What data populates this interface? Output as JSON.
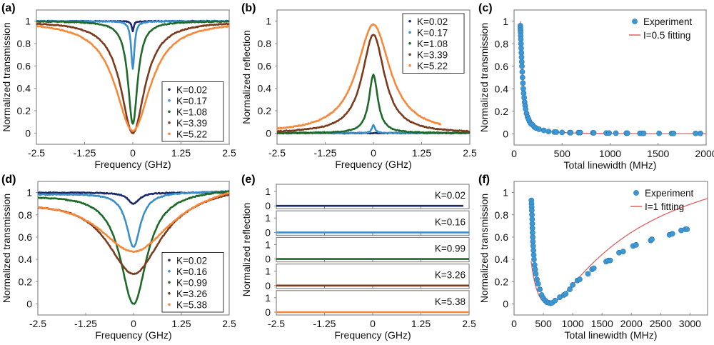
{
  "colors": {
    "navy": "#1b2a6b",
    "blue": "#3a8fc8",
    "green": "#1f6a2a",
    "brown": "#7b3b1c",
    "orange": "#f7883a",
    "fit": "#e06060",
    "exp": "#3d97d3",
    "frame": "#888888"
  },
  "chart_data": [
    {
      "id": "a",
      "panel_label": "(a)",
      "type": "line",
      "xlabel": "Frequency (GHz)",
      "ylabel": "Normalized transmission",
      "xlim": [
        -2.5,
        2.5
      ],
      "ylim": [
        -0.1,
        1.1
      ],
      "xticks": [
        "-2.5",
        "-1.25",
        "0",
        "1.25",
        "2.5"
      ],
      "xtick_values": [
        -2.5,
        -1.25,
        0,
        1.25,
        2.5
      ],
      "yticks": [
        "0",
        "0.2",
        "0.4",
        "0.6",
        "0.8",
        "1"
      ],
      "ytick_values": [
        0,
        0.2,
        0.4,
        0.6,
        0.8,
        1
      ],
      "legend": "bottom-right",
      "curve": "dip",
      "series": [
        {
          "name": "K=0.02",
          "color": "navy",
          "min": 0.91,
          "hwhm": 0.03,
          "baseline": 1.0
        },
        {
          "name": "K=0.17",
          "color": "blue",
          "min": 0.57,
          "hwhm": 0.05,
          "baseline": 1.0
        },
        {
          "name": "K=1.08",
          "color": "green",
          "min": 0.08,
          "hwhm": 0.15,
          "baseline": 1.0
        },
        {
          "name": "K=3.39",
          "color": "brown",
          "min": 0.0,
          "hwhm": 0.38,
          "baseline": 1.0
        },
        {
          "name": "K=5.22",
          "color": "orange",
          "min": 0.02,
          "hwhm": 0.55,
          "baseline": 1.0
        }
      ]
    },
    {
      "id": "b",
      "panel_label": "(b)",
      "type": "line",
      "xlabel": "Frequency (GHz)",
      "ylabel": "Normalized reflection",
      "xlim": [
        -2.5,
        2.5
      ],
      "ylim": [
        -0.1,
        1.1
      ],
      "xticks": [
        "-2.5",
        "-1.25",
        "0",
        "1.25",
        "2.5"
      ],
      "xtick_values": [
        -2.5,
        -1.25,
        0,
        1.25,
        2.5
      ],
      "yticks": [
        "0",
        "0.2",
        "0.4",
        "0.6",
        "0.8",
        "1"
      ],
      "ytick_values": [
        0,
        0.2,
        0.4,
        0.6,
        0.8,
        1
      ],
      "legend": "top-right",
      "curve": "peak",
      "series": [
        {
          "name": "K=0.02",
          "color": "navy",
          "peak": 0.0,
          "hwhm": 0.03,
          "xmax": 2.5
        },
        {
          "name": "K=0.17",
          "color": "blue",
          "peak": 0.07,
          "hwhm": 0.05,
          "xmax": 2.5
        },
        {
          "name": "K=1.08",
          "color": "green",
          "peak": 0.52,
          "hwhm": 0.14,
          "xmax": 2.5
        },
        {
          "name": "K=3.39",
          "color": "brown",
          "peak": 0.88,
          "hwhm": 0.35,
          "xmax": 2.5
        },
        {
          "name": "K=5.22",
          "color": "orange",
          "peak": 0.97,
          "hwhm": 0.52,
          "xmax": 1.75
        }
      ]
    },
    {
      "id": "c",
      "panel_label": "(c)",
      "type": "scatter",
      "xlabel": "Total linewidth (MHz)",
      "ylabel": "Normalized transmission",
      "xlim": [
        0,
        2000
      ],
      "ylim": [
        -0.1,
        1.1
      ],
      "xticks": [
        "0",
        "500",
        "1000",
        "1500",
        "2000"
      ],
      "xtick_values": [
        0,
        500,
        1000,
        1500,
        2000
      ],
      "yticks": [
        "0",
        "0.2",
        "0.4",
        "0.6",
        "0.8",
        "1"
      ],
      "ytick_values": [
        0,
        0.2,
        0.4,
        0.6,
        0.8,
        1
      ],
      "legend": "top-right",
      "legend_entries": [
        "Experiment",
        "I=0.5 fitting"
      ],
      "fit_type": "decay",
      "fit_params": {
        "x0": 65,
        "k": 0.021
      },
      "experiment_x": [
        65,
        66,
        67,
        68,
        69,
        70,
        72,
        74,
        76,
        78,
        80,
        82,
        85,
        88,
        92,
        96,
        100,
        105,
        110,
        115,
        120,
        130,
        140,
        150,
        160,
        175,
        190,
        210,
        230,
        260,
        310,
        360,
        420,
        440,
        500,
        580,
        590,
        670,
        690,
        820,
        830,
        960,
        990,
        1060,
        1170,
        1180,
        1310,
        1330,
        1350,
        1510,
        1640,
        1660,
        1890,
        1940
      ],
      "experiment_y": [
        0.96,
        0.94,
        0.92,
        0.9,
        0.87,
        0.84,
        0.8,
        0.76,
        0.72,
        0.68,
        0.64,
        0.6,
        0.55,
        0.5,
        0.45,
        0.4,
        0.36,
        0.32,
        0.28,
        0.25,
        0.22,
        0.18,
        0.15,
        0.13,
        0.11,
        0.09,
        0.08,
        0.06,
        0.05,
        0.04,
        0.03,
        0.02,
        0.015,
        0.015,
        0.012,
        0.01,
        0.01,
        0.01,
        0.01,
        0.008,
        0.008,
        0.006,
        0.006,
        0.005,
        0.005,
        0.005,
        0.004,
        0.004,
        0.004,
        0.004,
        0.003,
        0.003,
        0.003,
        0.003
      ]
    },
    {
      "id": "d",
      "panel_label": "(d)",
      "type": "line",
      "xlabel": "Frequency (GHz)",
      "ylabel": "Normalized transmission",
      "xlim": [
        -2.5,
        2.5
      ],
      "ylim": [
        -0.1,
        1.1
      ],
      "xticks": [
        "-2.5",
        "-1.25",
        "0",
        "1.25",
        "2.5"
      ],
      "xtick_values": [
        -2.5,
        -1.25,
        0,
        1.25,
        2.5
      ],
      "yticks": [
        "0",
        "0.2",
        "0.4",
        "0.6",
        "0.8",
        "1"
      ],
      "ytick_values": [
        0,
        0.2,
        0.4,
        0.6,
        0.8,
        1
      ],
      "legend": "bottom-right",
      "curve": "dip",
      "series": [
        {
          "name": "K=0.02",
          "color": "navy",
          "min": 0.9,
          "hwhm": 0.18,
          "baseline": 1.0
        },
        {
          "name": "K=0.16",
          "color": "blue",
          "min": 0.51,
          "hwhm": 0.22,
          "baseline": 1.0
        },
        {
          "name": "K=0.99",
          "color": "green",
          "min": 0.0,
          "hwhm": 0.42,
          "baseline": 1.01
        },
        {
          "name": "K=3.26",
          "color": "brown",
          "min": 0.27,
          "hwhm": 0.85,
          "baseline": 1.02
        },
        {
          "name": "K=5.38",
          "color": "orange",
          "min": 0.47,
          "hwhm": 1.15,
          "baseline": 1.05
        }
      ]
    },
    {
      "id": "e",
      "panel_label": "(e)",
      "type": "line",
      "xlabel": "Frequency (GHz)",
      "ylabel": "Normalized reflection",
      "xlim": [
        -2.5,
        2.5
      ],
      "ylim": [
        -0.1,
        1.1
      ],
      "xticks": [
        "-2.5",
        "-1.25",
        "0",
        "1.25",
        "2.5"
      ],
      "xtick_values": [
        -2.5,
        -1.25,
        0,
        1.25,
        2.5
      ],
      "yticks": [
        "0",
        "1"
      ],
      "ytick_values": [
        0,
        1
      ],
      "subplots": [
        {
          "name": "K=0.02",
          "color": "navy",
          "value": 0.0,
          "xmax": 2.35
        },
        {
          "name": "K=0.16",
          "color": "blue",
          "value": 0.0,
          "xmax": 2.5
        },
        {
          "name": "K=0.99",
          "color": "green",
          "value": 0.0,
          "xmax": 2.5
        },
        {
          "name": "K=3.26",
          "color": "brown",
          "value": 0.0,
          "xmax": 2.5
        },
        {
          "name": "K=5.38",
          "color": "orange",
          "value": 0.0,
          "xmax": 2.5
        }
      ]
    },
    {
      "id": "f",
      "panel_label": "(f)",
      "type": "scatter",
      "xlabel": "Total linewidth (MHz)",
      "ylabel": "Normalized transmission",
      "xlim": [
        0,
        3300
      ],
      "ylim": [
        -0.1,
        1.1
      ],
      "xticks": [
        "0",
        "500",
        "1000",
        "1500",
        "2000",
        "2500",
        "3000"
      ],
      "xtick_values": [
        0,
        500,
        1000,
        1500,
        2000,
        2500,
        3000
      ],
      "yticks": [
        "0",
        "0.2",
        "0.4",
        "0.6",
        "0.8",
        "1"
      ],
      "ytick_values": [
        0,
        0.2,
        0.4,
        0.6,
        0.8,
        1
      ],
      "legend": "top-right",
      "legend_entries": [
        "Experiment",
        "I=1 fitting"
      ],
      "fit_type": "critical",
      "fit_params": {
        "g0": 290,
        "gc": 600
      },
      "experiment_x": [
        295,
        298,
        300,
        302,
        305,
        308,
        310,
        312,
        315,
        318,
        320,
        325,
        330,
        335,
        340,
        350,
        360,
        370,
        390,
        410,
        440,
        470,
        500,
        530,
        560,
        590,
        620,
        650,
        700,
        780,
        850,
        880,
        950,
        1000,
        1080,
        1120,
        1260,
        1330,
        1360,
        1570,
        1610,
        1640,
        1790,
        1860,
        2030,
        2080,
        2330,
        2350,
        2650,
        2700,
        2850,
        2920,
        2950
      ],
      "experiment_y": [
        0.93,
        0.9,
        0.87,
        0.84,
        0.8,
        0.76,
        0.72,
        0.68,
        0.64,
        0.6,
        0.56,
        0.52,
        0.48,
        0.44,
        0.4,
        0.35,
        0.31,
        0.27,
        0.22,
        0.18,
        0.13,
        0.08,
        0.05,
        0.03,
        0.015,
        0.01,
        0.005,
        0.01,
        0.03,
        0.06,
        0.08,
        0.09,
        0.13,
        0.17,
        0.21,
        0.22,
        0.27,
        0.31,
        0.32,
        0.38,
        0.39,
        0.39,
        0.46,
        0.47,
        0.52,
        0.53,
        0.57,
        0.58,
        0.62,
        0.63,
        0.66,
        0.67,
        0.67
      ]
    }
  ]
}
